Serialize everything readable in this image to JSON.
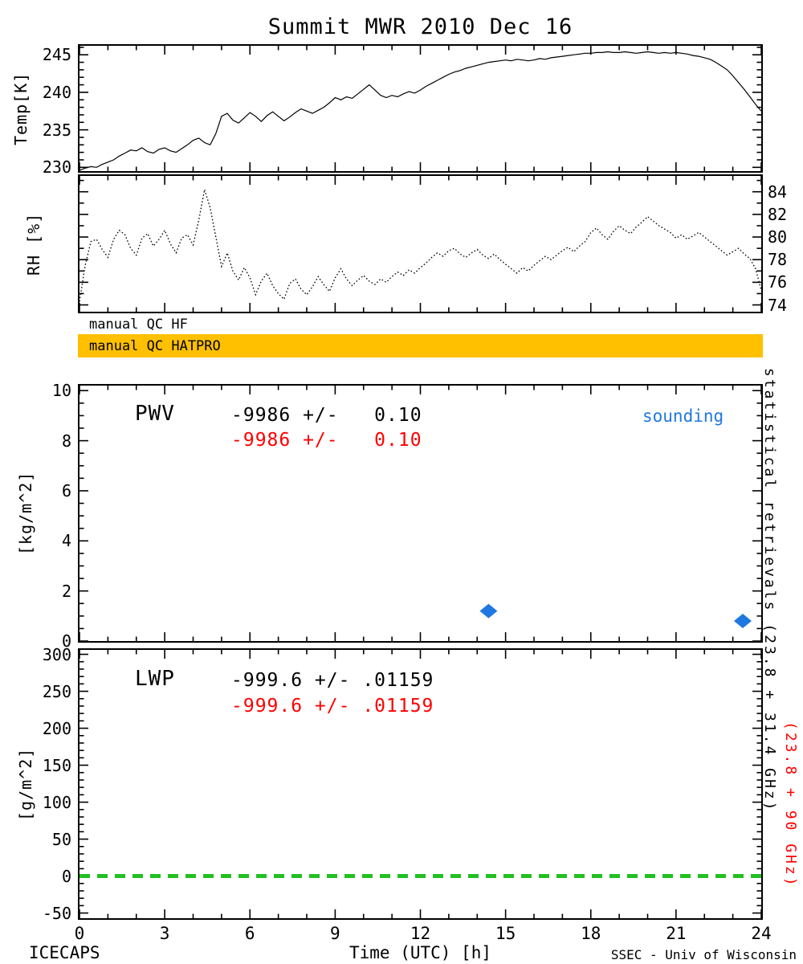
{
  "title": "Summit MWR 2010 Dec 16",
  "footer_left": "ICECAPS",
  "footer_right": "SSEC - Univ of Wisconsin",
  "qc": {
    "hf_label": "manual QC HF",
    "hatpro_label": "manual QC HATPRO"
  },
  "right_note": {
    "black": "statistical retrievals (23.8 + 31.4 GHz)",
    "red": "(23.8 + 90 GHz)"
  },
  "colors": {
    "line": "#000000",
    "red": "#FF0000",
    "blue": "#1E78E0",
    "green": "#22C022",
    "qc_bar": "#FFC000"
  },
  "xaxis": {
    "label": "Time (UTC) [h]",
    "lim": [
      0,
      24
    ],
    "ticks": [
      0,
      3,
      6,
      9,
      12,
      15,
      18,
      21,
      24
    ],
    "minor_step": 1
  },
  "chart_data": [
    {
      "id": "temp",
      "type": "line",
      "title": "Temperature",
      "ylabel": "Temp[K]",
      "ylim": [
        229.5,
        246.2
      ],
      "yticks": [
        230,
        235,
        240,
        245
      ],
      "y_minor_step": 1,
      "x_step": 0.2,
      "y": [
        229.6,
        229.9,
        230.1,
        230.0,
        230.4,
        230.7,
        231.0,
        231.5,
        231.9,
        232.3,
        232.2,
        232.6,
        232.1,
        231.9,
        232.4,
        232.6,
        232.2,
        232.0,
        232.5,
        233.0,
        233.6,
        233.9,
        233.3,
        233.0,
        234.5,
        236.8,
        237.2,
        236.3,
        235.9,
        236.6,
        237.3,
        236.8,
        236.1,
        236.9,
        237.4,
        236.8,
        236.2,
        236.7,
        237.3,
        237.8,
        237.5,
        237.2,
        237.6,
        238.0,
        238.6,
        239.3,
        239.0,
        239.4,
        239.2,
        239.8,
        240.4,
        241.0,
        240.3,
        239.6,
        239.3,
        239.6,
        239.4,
        239.8,
        240.1,
        239.9,
        240.3,
        240.8,
        241.2,
        241.6,
        242.0,
        242.4,
        242.7,
        242.9,
        243.2,
        243.4,
        243.6,
        243.8,
        244.0,
        244.1,
        244.2,
        244.3,
        244.2,
        244.4,
        244.3,
        244.2,
        244.3,
        244.5,
        244.4,
        244.6,
        244.7,
        244.8,
        244.9,
        245.0,
        245.1,
        245.2,
        245.2,
        245.3,
        245.3,
        245.4,
        245.3,
        245.3,
        245.4,
        245.3,
        245.2,
        245.3,
        245.4,
        245.3,
        245.2,
        245.3,
        245.2,
        245.3,
        245.2,
        245.1,
        244.9,
        244.8,
        244.6,
        244.4,
        244.0,
        243.5,
        243.0,
        242.2,
        241.3,
        240.4,
        239.4,
        238.4,
        237.5
      ]
    },
    {
      "id": "rh",
      "type": "line",
      "title": "Relative Humidity",
      "style": "dotted",
      "yside": "right",
      "ylabel": "RH [%]",
      "ylim": [
        73.4,
        85.4
      ],
      "yticks": [
        74,
        76,
        78,
        80,
        82,
        84
      ],
      "y_minor_step": 1,
      "x_step": 0.2,
      "y": [
        74.3,
        77.5,
        79.6,
        79.8,
        78.9,
        78.2,
        79.8,
        80.6,
        80.2,
        79.0,
        78.4,
        79.9,
        80.3,
        79.2,
        79.8,
        80.6,
        79.4,
        78.6,
        79.9,
        80.2,
        79.3,
        81.5,
        84.2,
        82.6,
        80.0,
        77.4,
        78.6,
        77.0,
        76.2,
        77.3,
        76.4,
        74.9,
        76.1,
        76.8,
        75.7,
        75.0,
        74.5,
        75.9,
        76.3,
        75.4,
        74.9,
        75.6,
        76.5,
        75.8,
        75.2,
        76.4,
        77.2,
        76.3,
        75.7,
        76.2,
        76.6,
        76.1,
        75.8,
        76.3,
        76.0,
        76.5,
        76.9,
        76.6,
        77.1,
        76.8,
        77.3,
        77.7,
        78.2,
        78.6,
        78.3,
        78.8,
        79.0,
        78.5,
        78.2,
        78.6,
        78.9,
        78.4,
        78.1,
        78.5,
        78.0,
        77.6,
        77.2,
        76.8,
        77.3,
        77.0,
        77.5,
        77.9,
        78.3,
        78.0,
        78.4,
        78.8,
        79.1,
        78.7,
        79.2,
        79.6,
        80.4,
        80.8,
        80.2,
        79.8,
        80.5,
        81.0,
        80.6,
        80.3,
        80.9,
        81.3,
        81.8,
        81.4,
        81.0,
        80.7,
        80.4,
        79.9,
        80.2,
        79.8,
        80.1,
        80.4,
        80.0,
        79.6,
        79.2,
        78.8,
        78.4,
        78.7,
        79.0,
        78.5,
        78.1,
        77.2,
        75.3
      ]
    },
    {
      "id": "pwv",
      "type": "scatter",
      "title": "Precipitable Water Vapor",
      "label": "PWV",
      "ylabel": "[kg/m^2]",
      "ylim": [
        0,
        10.2
      ],
      "yticks": [
        0,
        2,
        4,
        6,
        8,
        10
      ],
      "y_minor_step": 0.5,
      "stat_black": "-9986 +/-   0.10",
      "stat_red": "-9986 +/-   0.10",
      "legend": "sounding",
      "points": [
        {
          "x": 14.4,
          "y": 1.2
        },
        {
          "x": 23.35,
          "y": 0.8
        }
      ]
    },
    {
      "id": "lwp",
      "type": "line",
      "title": "Liquid Water Path",
      "label": "LWP",
      "ylabel": "[g/m^2]",
      "ylim": [
        -57,
        306
      ],
      "yticks": [
        -50,
        0,
        50,
        100,
        150,
        200,
        250,
        300
      ],
      "y_minor_step": 10,
      "stat_black": "-999.6 +/- .01159",
      "stat_red": "-999.6 +/- .01159",
      "zero_line": 0
    }
  ]
}
